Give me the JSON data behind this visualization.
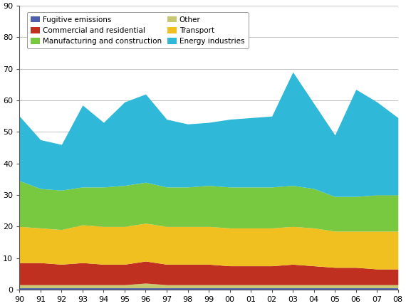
{
  "year_labels": [
    "90",
    "91",
    "92",
    "93",
    "94",
    "95",
    "96",
    "97",
    "98",
    "99",
    "00",
    "01",
    "02",
    "03",
    "04",
    "05",
    "06",
    "07",
    "08"
  ],
  "fugitive": [
    0.5,
    0.5,
    0.5,
    0.5,
    0.5,
    0.5,
    0.5,
    0.5,
    0.5,
    0.5,
    0.5,
    0.5,
    0.5,
    0.5,
    0.5,
    0.5,
    0.5,
    0.5,
    0.5
  ],
  "other": [
    1.0,
    1.0,
    1.0,
    1.0,
    1.0,
    1.0,
    1.5,
    1.0,
    1.0,
    1.0,
    1.0,
    1.0,
    1.0,
    1.0,
    1.0,
    1.0,
    1.0,
    1.0,
    1.0
  ],
  "commercial": [
    7.0,
    7.0,
    6.5,
    7.0,
    6.5,
    6.5,
    7.0,
    6.5,
    6.5,
    6.5,
    6.0,
    6.0,
    6.0,
    6.5,
    6.0,
    5.5,
    5.5,
    5.0,
    5.0
  ],
  "transport": [
    11.5,
    11.0,
    11.0,
    12.0,
    12.0,
    12.0,
    12.0,
    12.0,
    12.0,
    12.0,
    12.0,
    12.0,
    12.0,
    12.0,
    12.0,
    11.5,
    11.5,
    12.0,
    12.0
  ],
  "manufacturing": [
    14.5,
    12.5,
    12.5,
    12.0,
    12.5,
    13.0,
    13.0,
    12.5,
    12.5,
    13.0,
    13.0,
    13.0,
    13.0,
    13.0,
    12.5,
    11.0,
    11.0,
    11.5,
    11.5
  ],
  "energy": [
    20.5,
    15.5,
    14.5,
    26.0,
    20.5,
    26.5,
    28.0,
    21.5,
    20.0,
    20.0,
    21.5,
    22.0,
    22.5,
    36.0,
    27.0,
    19.5,
    34.0,
    29.5,
    24.5
  ],
  "colors": {
    "fugitive": "#4f60b0",
    "other": "#c8c870",
    "commercial": "#c03020",
    "transport": "#f0c020",
    "manufacturing": "#78c840",
    "energy": "#30b8d8"
  },
  "labels": {
    "fugitive": "Fugitive emissions",
    "other": "Other",
    "commercial": "Commercial and residential",
    "transport": "Transport",
    "manufacturing": "Manufacturing and construction",
    "energy": "Energy industries"
  },
  "ylim": [
    0,
    90
  ],
  "yticks": [
    0,
    10,
    20,
    30,
    40,
    50,
    60,
    70,
    80,
    90
  ],
  "background_color": "#ffffff"
}
